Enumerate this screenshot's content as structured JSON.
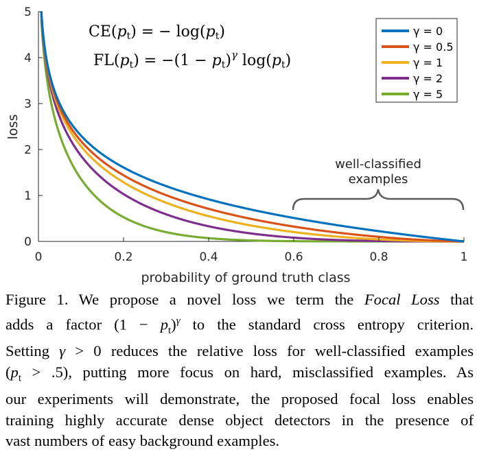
{
  "chart_data": {
    "type": "line",
    "title": "",
    "xlabel": "probability of ground truth class",
    "ylabel": "loss",
    "xlim": [
      0,
      1
    ],
    "ylim": [
      0,
      5
    ],
    "xticks": [
      "0",
      "0.2",
      "0.4",
      "0.6",
      "0.8",
      "1"
    ],
    "yticks": [
      "0",
      "1",
      "2",
      "3",
      "4",
      "5"
    ],
    "legend_position": "top-right",
    "x": [
      0.01,
      0.05,
      0.1,
      0.2,
      0.3,
      0.4,
      0.5,
      0.6,
      0.7,
      0.8,
      0.9,
      1.0
    ],
    "series": [
      {
        "name": "γ = 0",
        "color": "#0072bd",
        "gamma": 0,
        "values": [
          4.61,
          3.0,
          2.3,
          1.61,
          1.2,
          0.92,
          0.69,
          0.51,
          0.36,
          0.22,
          0.11,
          0.0
        ]
      },
      {
        "name": "γ = 0.5",
        "color": "#d95319",
        "gamma": 0.5,
        "values": [
          4.58,
          2.92,
          2.18,
          1.44,
          1.01,
          0.71,
          0.49,
          0.32,
          0.19,
          0.1,
          0.03,
          0.0
        ]
      },
      {
        "name": "γ = 1",
        "color": "#edb120",
        "gamma": 1,
        "values": [
          4.56,
          2.85,
          2.07,
          1.29,
          0.84,
          0.55,
          0.35,
          0.2,
          0.11,
          0.04,
          0.01,
          0.0
        ]
      },
      {
        "name": "γ = 2",
        "color": "#7e2f8e",
        "gamma": 2,
        "values": [
          4.52,
          2.71,
          1.87,
          1.03,
          0.59,
          0.33,
          0.17,
          0.08,
          0.03,
          0.01,
          0.0,
          0.0
        ]
      },
      {
        "name": "γ = 5",
        "color": "#77ac30",
        "gamma": 5,
        "values": [
          4.38,
          2.32,
          1.36,
          0.53,
          0.2,
          0.07,
          0.02,
          0.01,
          0.0,
          0.0,
          0.0,
          0.0
        ]
      }
    ],
    "annotations": {
      "formula_ce": "CE(pt) = − log(pt)",
      "formula_fl": "FL(pt) = −(1 − pt)γ log(pt)",
      "bracket_label_line1": "well-classified",
      "bracket_label_line2": "examples"
    },
    "grid": false
  },
  "caption": {
    "lines": [
      "Figure 1. We propose a novel loss we term the Focal Loss that",
      "adds a factor (1 − pt)γ to the standard cross entropy criterion.",
      "Setting γ > 0 reduces the relative loss for well-classified examples",
      "(pt > .5), putting more focus on hard, misclassified examples. As",
      "our experiments will demonstrate, the proposed focal loss enables",
      "training highly accurate dense object detectors in the presence of",
      "vast numbers of easy background examples."
    ]
  }
}
